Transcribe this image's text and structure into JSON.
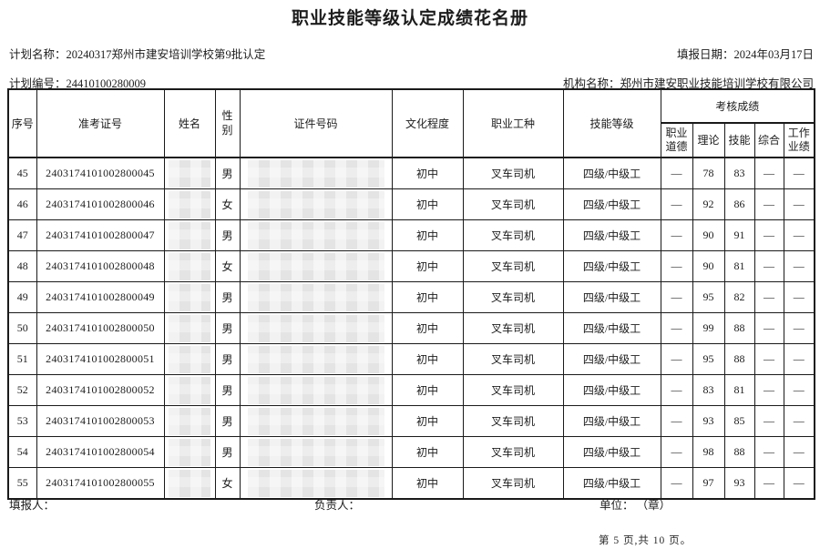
{
  "title": "职业技能等级认定成绩花名册",
  "meta": {
    "plan_name_label": "计划名称：",
    "plan_name": "20240317郑州市建安培训学校第9批认定",
    "report_date_label": "填报日期：",
    "report_date": "2024年03月17日",
    "plan_no_label": "计划编号：",
    "plan_no": "24410100280009",
    "org_label": "机构名称：",
    "org_name": "郑州市建安职业技能培训学校有限公司"
  },
  "table": {
    "headers": {
      "seq": "序号",
      "admission": "准考证号",
      "name": "姓名",
      "gender": "性别",
      "cert": "证件号码",
      "education": "文化程度",
      "occupation": "职业工种",
      "level": "技能等级",
      "scores_group": "考核成绩",
      "ethics": "职业道德",
      "theory": "理论",
      "skill": "技能",
      "comprehensive": "综合",
      "performance": "工作业绩"
    },
    "rows": [
      {
        "seq": "45",
        "admission": "2403174101002800045",
        "gender": "男",
        "education": "初中",
        "occupation": "叉车司机",
        "level": "四级/中级工",
        "ethics": "—",
        "theory": "78",
        "skill": "83",
        "comprehensive": "—",
        "performance": "—"
      },
      {
        "seq": "46",
        "admission": "2403174101002800046",
        "gender": "女",
        "education": "初中",
        "occupation": "叉车司机",
        "level": "四级/中级工",
        "ethics": "—",
        "theory": "92",
        "skill": "86",
        "comprehensive": "—",
        "performance": "—"
      },
      {
        "seq": "47",
        "admission": "2403174101002800047",
        "gender": "男",
        "education": "初中",
        "occupation": "叉车司机",
        "level": "四级/中级工",
        "ethics": "—",
        "theory": "90",
        "skill": "91",
        "comprehensive": "—",
        "performance": "—"
      },
      {
        "seq": "48",
        "admission": "2403174101002800048",
        "gender": "女",
        "education": "初中",
        "occupation": "叉车司机",
        "level": "四级/中级工",
        "ethics": "—",
        "theory": "90",
        "skill": "81",
        "comprehensive": "—",
        "performance": "—"
      },
      {
        "seq": "49",
        "admission": "2403174101002800049",
        "gender": "男",
        "education": "初中",
        "occupation": "叉车司机",
        "level": "四级/中级工",
        "ethics": "—",
        "theory": "95",
        "skill": "82",
        "comprehensive": "—",
        "performance": "—"
      },
      {
        "seq": "50",
        "admission": "2403174101002800050",
        "gender": "男",
        "education": "初中",
        "occupation": "叉车司机",
        "level": "四级/中级工",
        "ethics": "—",
        "theory": "99",
        "skill": "88",
        "comprehensive": "—",
        "performance": "—"
      },
      {
        "seq": "51",
        "admission": "2403174101002800051",
        "gender": "男",
        "education": "初中",
        "occupation": "叉车司机",
        "level": "四级/中级工",
        "ethics": "—",
        "theory": "95",
        "skill": "88",
        "comprehensive": "—",
        "performance": "—"
      },
      {
        "seq": "52",
        "admission": "2403174101002800052",
        "gender": "男",
        "education": "初中",
        "occupation": "叉车司机",
        "level": "四级/中级工",
        "ethics": "—",
        "theory": "83",
        "skill": "81",
        "comprehensive": "—",
        "performance": "—"
      },
      {
        "seq": "53",
        "admission": "2403174101002800053",
        "gender": "男",
        "education": "初中",
        "occupation": "叉车司机",
        "level": "四级/中级工",
        "ethics": "—",
        "theory": "93",
        "skill": "85",
        "comprehensive": "—",
        "performance": "—"
      },
      {
        "seq": "54",
        "admission": "2403174101002800054",
        "gender": "男",
        "education": "初中",
        "occupation": "叉车司机",
        "level": "四级/中级工",
        "ethics": "—",
        "theory": "98",
        "skill": "88",
        "comprehensive": "—",
        "performance": "—"
      },
      {
        "seq": "55",
        "admission": "2403174101002800055",
        "gender": "女",
        "education": "初中",
        "occupation": "叉车司机",
        "level": "四级/中级工",
        "ethics": "—",
        "theory": "97",
        "skill": "93",
        "comprehensive": "—",
        "performance": "—"
      }
    ]
  },
  "footer": {
    "filler_label": "填报人：",
    "responsible_label": "负责人：",
    "unit_label": "单位： （章）",
    "page_info": "第 5 页,共 10 页。"
  }
}
